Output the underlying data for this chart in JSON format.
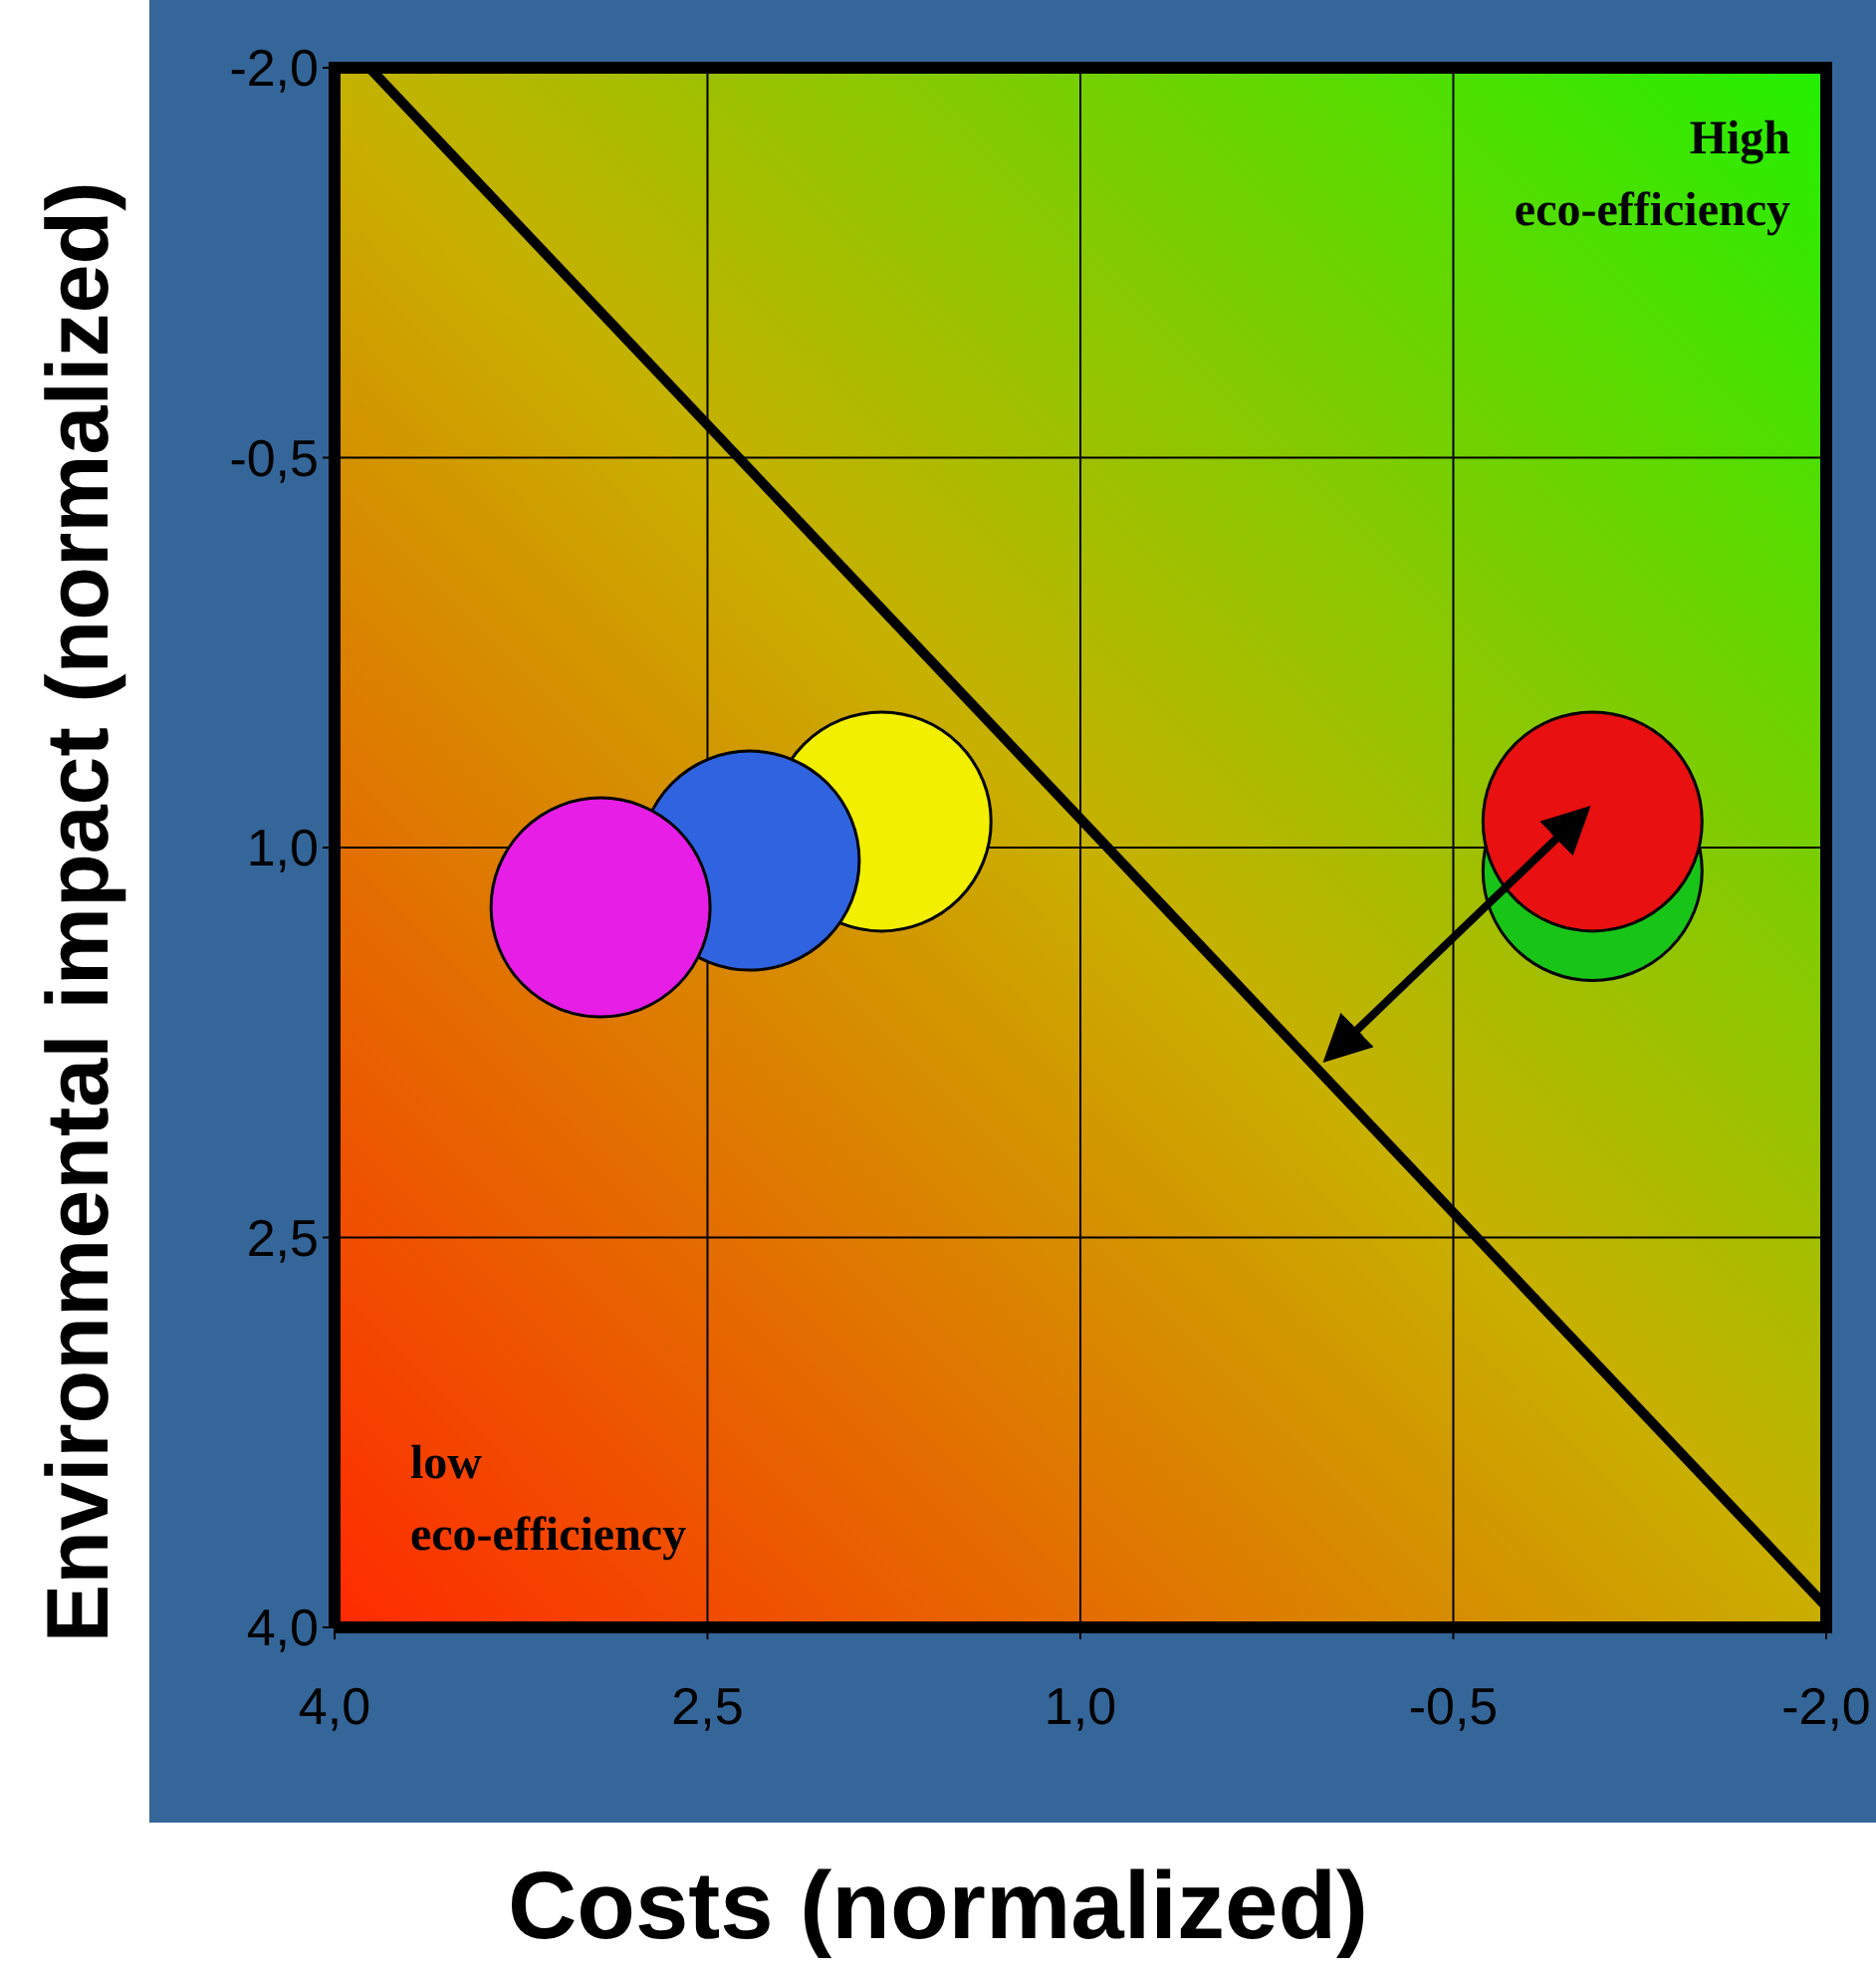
{
  "chart_data": {
    "type": "bubble",
    "xlabel": "Costs (normalized)",
    "ylabel": "Environmental impact (normalized)",
    "xlim": [
      4.0,
      -2.0
    ],
    "ylim": [
      4.0,
      -2.0
    ],
    "xticks": [
      {
        "value": 4.0,
        "label": "4,0"
      },
      {
        "value": 2.5,
        "label": "2,5"
      },
      {
        "value": 1.0,
        "label": "1,0"
      },
      {
        "value": -0.5,
        "label": "-0,5"
      },
      {
        "value": -2.0,
        "label": "-2,0"
      }
    ],
    "yticks": [
      {
        "value": 4.0,
        "label": "4,0"
      },
      {
        "value": 2.5,
        "label": "2,5"
      },
      {
        "value": 1.0,
        "label": "1,0"
      },
      {
        "value": -0.5,
        "label": "-0,5"
      },
      {
        "value": -2.0,
        "label": "-2,0"
      }
    ],
    "grid": true,
    "series": [
      {
        "x": [
          1.8,
          2.33,
          2.93,
          -1.06,
          -1.06
        ],
        "values": [
          0.9,
          1.05,
          1.23,
          1.09,
          0.9
        ],
        "sizes": [
          1,
          1,
          1,
          1,
          1
        ],
        "colors": [
          "#f2f000",
          "#2f63e0",
          "#e61ee6",
          "#19c419",
          "#e81010"
        ]
      },
      {
        "type": "line",
        "x": [
          3.86,
          -2.0
        ],
        "values": [
          -2.0,
          3.92
        ],
        "color": "#000000"
      }
    ],
    "annotations": [
      "High\neco-efficiency",
      "low\neco-efficiency"
    ]
  }
}
